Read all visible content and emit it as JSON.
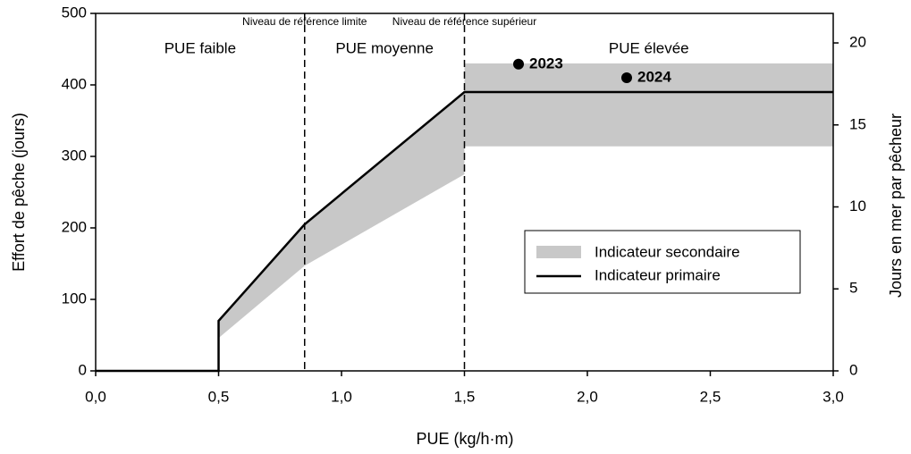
{
  "chart_data": {
    "type": "line",
    "xlabel": "PUE (kg/h·m)",
    "ylabel": "Effort de pêche (jours)",
    "y2label": "Jours en mer par pêcheur",
    "xlim": [
      0,
      3
    ],
    "xticks": [
      {
        "value": 0,
        "label": "0,0"
      },
      {
        "value": 0.5,
        "label": "0,5"
      },
      {
        "value": 1,
        "label": "1,0"
      },
      {
        "value": 1.5,
        "label": "1,5"
      },
      {
        "value": 2,
        "label": "2,0"
      },
      {
        "value": 2.5,
        "label": "2,5"
      },
      {
        "value": 3,
        "label": "3,0"
      }
    ],
    "ylim": [
      0,
      500
    ],
    "yticks": [
      0,
      100,
      200,
      300,
      400,
      500
    ],
    "y2lim": [
      0,
      21.8
    ],
    "y2ticks": [
      0,
      5,
      10,
      15,
      20
    ],
    "band": {
      "name": "Indicateur secondaire",
      "color": "#c8c8c8",
      "x": [
        0.5,
        0.85,
        1.5,
        1.5,
        3.0
      ],
      "low": [
        46,
        147,
        275,
        314,
        314
      ],
      "high": [
        70,
        205,
        390,
        430,
        430
      ]
    },
    "series": [
      {
        "name": "Indicateur primaire",
        "color": "#000000",
        "x": [
          0,
          0.5,
          0.5,
          0.85,
          1.5,
          3.0
        ],
        "values": [
          0,
          0,
          70,
          205,
          390,
          390
        ]
      }
    ],
    "points": [
      {
        "label": "2023",
        "x": 1.72,
        "y": 429
      },
      {
        "label": "2024",
        "x": 2.16,
        "y": 410
      }
    ],
    "reference_lines": [
      {
        "x": 0.85,
        "label": "Niveau de référence limite"
      },
      {
        "x": 1.5,
        "label": "Niveau de référence supérieur"
      }
    ],
    "regions": [
      "PUE faible",
      "PUE moyenne",
      "PUE élevée"
    ]
  }
}
